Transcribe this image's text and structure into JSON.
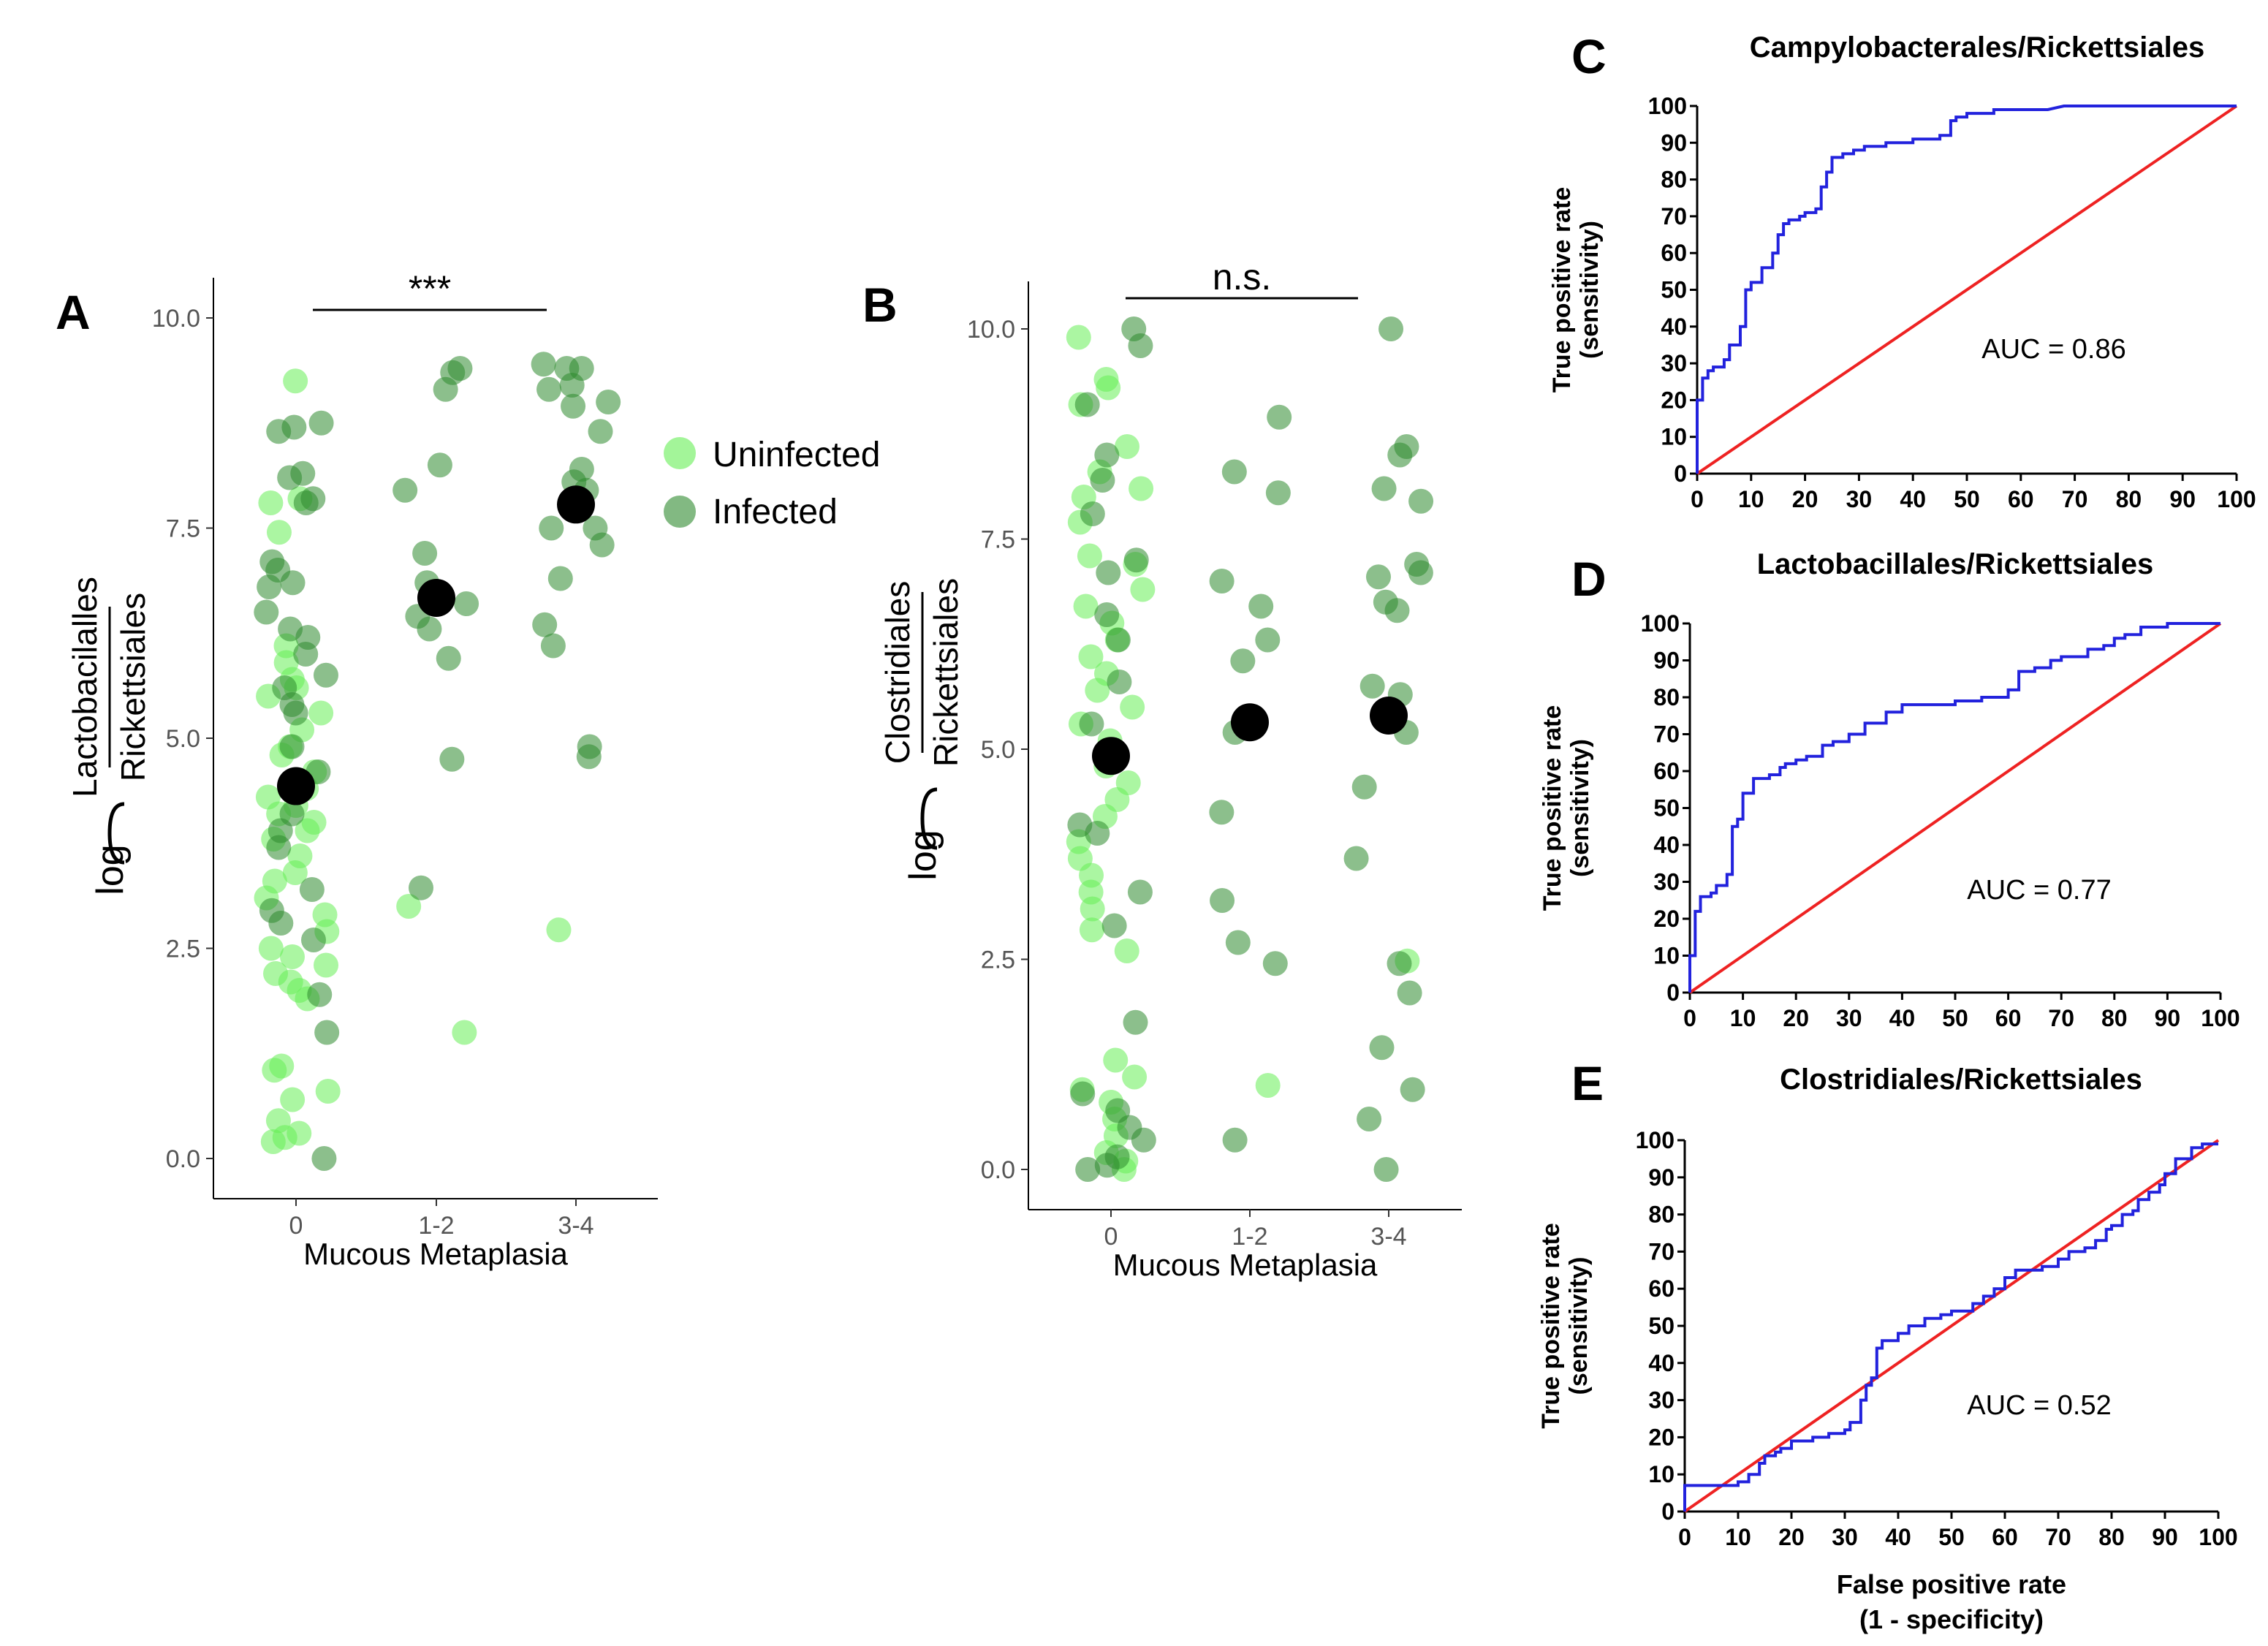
{
  "chart_data": [
    {
      "panel": "A",
      "type": "scatter",
      "xlabel": "Mucous Metaplasia",
      "ylabel_prefix": "log",
      "ylabel_numerator": "Lactobacilalles",
      "ylabel_denominator": "Rickettsiales",
      "categories": [
        "0",
        "1-2",
        "3-4"
      ],
      "yticks": [
        "0.0",
        "2.5",
        "5.0",
        "7.5",
        "10.0"
      ],
      "ylim": [
        0,
        10.0
      ],
      "significance": "***",
      "means": [
        4.43,
        6.67,
        7.78
      ],
      "series": [
        {
          "name": "Uninfected",
          "color": "#66ee55",
          "category_index": [
            0,
            0,
            0,
            0,
            0,
            0,
            0,
            0,
            0,
            0,
            0,
            0,
            0,
            0,
            0,
            0,
            0,
            0,
            0,
            0,
            0,
            0,
            0,
            0,
            0,
            0,
            0,
            0,
            0,
            0,
            0,
            0,
            0,
            0,
            0,
            0,
            0,
            0,
            0,
            0,
            0,
            0,
            1,
            1,
            2
          ],
          "values": [
            9.25,
            7.85,
            7.8,
            7.45,
            5.7,
            5.6,
            5.5,
            5.3,
            5.1,
            4.9,
            4.8,
            4.6,
            4.4,
            4.3,
            4.2,
            4.1,
            3.9,
            3.8,
            3.6,
            3.4,
            3.3,
            3.1,
            2.9,
            2.7,
            2.5,
            2.4,
            2.3,
            2.2,
            2.1,
            2.0,
            1.9,
            1.1,
            1.05,
            0.8,
            0.7,
            0.45,
            0.3,
            0.25,
            0.2,
            4.0,
            5.9,
            6.1,
            3.0,
            1.5,
            2.72
          ]
        },
        {
          "name": "Infected",
          "color": "#2e8b2e",
          "category_index": [
            0,
            0,
            0,
            0,
            0,
            0,
            0,
            0,
            0,
            0,
            0,
            0,
            0,
            0,
            0,
            0,
            0,
            0,
            0,
            0,
            0,
            0,
            0,
            0,
            0,
            0,
            0,
            0,
            0,
            0,
            0,
            0,
            1,
            1,
            1,
            1,
            1,
            1,
            1,
            1,
            1,
            1,
            1,
            1,
            1,
            2,
            2,
            2,
            2,
            2,
            2,
            2,
            2,
            2,
            2,
            2,
            2,
            2,
            2,
            2,
            2,
            2,
            2,
            2
          ],
          "values": [
            8.75,
            8.7,
            8.65,
            8.15,
            8.1,
            7.85,
            7.8,
            7.1,
            7.0,
            6.85,
            6.8,
            6.5,
            6.3,
            6.2,
            6.0,
            5.75,
            5.6,
            5.4,
            5.3,
            4.9,
            4.6,
            4.4,
            4.1,
            3.9,
            3.7,
            3.2,
            2.95,
            2.8,
            2.6,
            1.95,
            1.5,
            0.0,
            9.4,
            9.35,
            9.15,
            8.25,
            7.95,
            7.2,
            6.85,
            6.45,
            6.3,
            5.95,
            4.75,
            3.22,
            6.6,
            9.45,
            9.4,
            9.4,
            9.2,
            9.15,
            9.0,
            8.95,
            8.65,
            8.2,
            8.05,
            7.5,
            7.5,
            7.3,
            6.9,
            6.35,
            6.1,
            4.9,
            4.78,
            7.95
          ]
        }
      ]
    },
    {
      "panel": "B",
      "type": "scatter",
      "xlabel": "Mucous Metaplasia",
      "ylabel_prefix": "log",
      "ylabel_numerator": "Clostridiales",
      "ylabel_denominator": "Rickettsiales",
      "categories": [
        "0",
        "1-2",
        "3-4"
      ],
      "yticks": [
        "0.0",
        "2.5",
        "5.0",
        "7.5",
        "10.0"
      ],
      "ylim": [
        0,
        10.0
      ],
      "significance": "n.s.",
      "means": [
        4.92,
        5.32,
        5.4
      ],
      "series": [
        {
          "name": "Uninfected",
          "color": "#66ee55",
          "category_index": [
            0,
            0,
            0,
            0,
            0,
            0,
            0,
            0,
            0,
            0,
            0,
            0,
            0,
            0,
            0,
            0,
            0,
            0,
            0,
            0,
            0,
            0,
            0,
            0,
            0,
            0,
            0,
            0,
            0,
            0,
            0,
            0,
            0,
            0,
            0,
            0,
            0,
            0,
            0,
            0,
            0,
            1,
            2
          ],
          "values": [
            9.9,
            9.4,
            9.3,
            9.1,
            8.6,
            8.3,
            8.1,
            8.0,
            7.7,
            7.3,
            7.2,
            6.9,
            6.7,
            6.5,
            6.3,
            6.1,
            5.9,
            5.7,
            5.5,
            5.3,
            5.1,
            4.8,
            4.6,
            4.4,
            4.2,
            3.9,
            3.7,
            3.5,
            3.3,
            3.1,
            2.85,
            2.6,
            1.3,
            1.1,
            0.95,
            0.8,
            0.6,
            0.4,
            0.2,
            0.1,
            0.0,
            1.0,
            2.48
          ]
        },
        {
          "name": "Infected",
          "color": "#2e8b2e",
          "category_index": [
            0,
            0,
            0,
            0,
            0,
            0,
            0,
            0,
            0,
            0,
            0,
            0,
            0,
            0,
            0,
            0,
            0,
            0,
            0,
            0,
            0,
            0,
            0,
            0,
            1,
            1,
            1,
            1,
            1,
            1,
            1,
            1,
            1,
            1,
            1,
            1,
            1,
            2,
            2,
            2,
            2,
            2,
            2,
            2,
            2,
            2,
            2,
            2,
            2,
            2,
            2,
            2,
            2,
            2,
            2,
            2,
            2,
            2
          ],
          "values": [
            10.0,
            9.8,
            9.1,
            8.5,
            8.2,
            7.8,
            7.25,
            7.1,
            6.6,
            6.3,
            5.8,
            5.3,
            4.1,
            4.0,
            3.3,
            2.9,
            1.75,
            0.9,
            0.7,
            0.5,
            0.35,
            0.15,
            0.05,
            0.0,
            8.95,
            8.3,
            8.05,
            7.0,
            6.7,
            6.3,
            6.05,
            4.25,
            3.2,
            2.7,
            2.45,
            0.35,
            5.2,
            10.0,
            8.6,
            8.5,
            8.1,
            7.95,
            7.2,
            7.1,
            7.05,
            6.75,
            6.65,
            5.75,
            5.65,
            5.2,
            4.55,
            3.7,
            2.1,
            1.45,
            0.95,
            0.6,
            0.0,
            2.45
          ]
        }
      ]
    },
    {
      "panel": "C",
      "type": "line",
      "title": "Campylobacterales/Rickettsiales",
      "xlabel": "",
      "ylabel_line1": "True positive rate",
      "ylabel_line2": "(sensitivity)",
      "xlim": [
        0,
        100
      ],
      "ylim": [
        0,
        100
      ],
      "xticks": [
        "0",
        "10",
        "20",
        "30",
        "40",
        "50",
        "60",
        "70",
        "80",
        "90",
        "100"
      ],
      "yticks": [
        "0",
        "10",
        "20",
        "30",
        "40",
        "50",
        "60",
        "70",
        "80",
        "90",
        "100"
      ],
      "auc_label": "AUC = 0.86",
      "series": [
        {
          "name": "ROC",
          "color": "#2222dd",
          "x": [
            0,
            0,
            1,
            1,
            2,
            2,
            3,
            3,
            5,
            5,
            6,
            6,
            8,
            8,
            9,
            9,
            10,
            10,
            12,
            12,
            14,
            14,
            15,
            15,
            16,
            16,
            17,
            17,
            19,
            19,
            20,
            20,
            22,
            22,
            23,
            23,
            24,
            24,
            25,
            25,
            27,
            27,
            29,
            29,
            31,
            31,
            35,
            35,
            40,
            40,
            45,
            45,
            47,
            47,
            48,
            48,
            50,
            50,
            55,
            55,
            60,
            60,
            65,
            65,
            68,
            100
          ],
          "y": [
            0,
            20,
            20,
            26,
            26,
            28,
            28,
            29,
            29,
            31,
            31,
            35,
            35,
            40,
            40,
            50,
            50,
            52,
            52,
            56,
            56,
            60,
            60,
            65,
            65,
            68,
            68,
            69,
            69,
            70,
            70,
            71,
            71,
            72,
            72,
            78,
            78,
            82,
            82,
            86,
            86,
            87,
            87,
            88,
            88,
            89,
            89,
            90,
            90,
            91,
            91,
            92,
            92,
            96,
            96,
            97,
            97,
            98,
            98,
            99,
            99,
            99,
            99,
            99,
            100,
            100
          ]
        },
        {
          "name": "Reference",
          "color": "#ee2222",
          "x": [
            0,
            100
          ],
          "y": [
            0,
            100
          ]
        }
      ]
    },
    {
      "panel": "D",
      "type": "line",
      "title": "Lactobacillales/Rickettsiales",
      "xlabel": "",
      "ylabel_line1": "True positive rate",
      "ylabel_line2": "(sensitivity)",
      "xlim": [
        0,
        100
      ],
      "ylim": [
        0,
        100
      ],
      "xticks": [
        "0",
        "10",
        "20",
        "30",
        "40",
        "50",
        "60",
        "70",
        "80",
        "90",
        "100"
      ],
      "yticks": [
        "0",
        "10",
        "20",
        "30",
        "40",
        "50",
        "60",
        "70",
        "80",
        "90",
        "100"
      ],
      "auc_label": "AUC = 0.77",
      "series": [
        {
          "name": "ROC",
          "color": "#2222dd",
          "x": [
            0,
            0,
            1,
            1,
            2,
            2,
            4,
            4,
            5,
            5,
            7,
            7,
            8,
            8,
            9,
            9,
            10,
            10,
            12,
            12,
            15,
            15,
            17,
            17,
            18,
            18,
            20,
            20,
            22,
            22,
            25,
            25,
            27,
            27,
            30,
            30,
            33,
            33,
            37,
            37,
            40,
            40,
            50,
            50,
            55,
            55,
            60,
            60,
            62,
            62,
            65,
            65,
            68,
            68,
            70,
            70,
            75,
            75,
            78,
            78,
            80,
            80,
            82,
            82,
            85,
            85,
            90,
            90,
            100
          ],
          "y": [
            0,
            10,
            10,
            22,
            22,
            26,
            26,
            27,
            27,
            29,
            29,
            32,
            32,
            45,
            45,
            47,
            47,
            54,
            54,
            58,
            58,
            59,
            59,
            61,
            61,
            62,
            62,
            63,
            63,
            64,
            64,
            67,
            67,
            68,
            68,
            70,
            70,
            73,
            73,
            76,
            76,
            78,
            78,
            79,
            79,
            80,
            80,
            82,
            82,
            87,
            87,
            88,
            88,
            90,
            90,
            91,
            91,
            93,
            93,
            94,
            94,
            96,
            96,
            97,
            97,
            99,
            99,
            100,
            100
          ]
        },
        {
          "name": "Reference",
          "color": "#ee2222",
          "x": [
            0,
            100
          ],
          "y": [
            0,
            100
          ]
        }
      ]
    },
    {
      "panel": "E",
      "type": "line",
      "title": "Clostridiales/Rickettsiales",
      "xlabel_line1": "False positive rate",
      "xlabel_line2": "(1 - specificity)",
      "ylabel_line1": "True positive rate",
      "ylabel_line2": "(sensitivity)",
      "xlim": [
        0,
        100
      ],
      "ylim": [
        0,
        100
      ],
      "xticks": [
        "0",
        "10",
        "20",
        "30",
        "40",
        "50",
        "60",
        "70",
        "80",
        "90",
        "100"
      ],
      "yticks": [
        "0",
        "10",
        "20",
        "30",
        "40",
        "50",
        "60",
        "70",
        "80",
        "90",
        "100"
      ],
      "auc_label": "AUC = 0.52",
      "series": [
        {
          "name": "ROC",
          "color": "#2222dd",
          "x": [
            0,
            0,
            10,
            10,
            12,
            12,
            14,
            14,
            15,
            15,
            17,
            17,
            18,
            18,
            20,
            20,
            24,
            24,
            27,
            27,
            30,
            30,
            31,
            31,
            33,
            33,
            34,
            34,
            35,
            35,
            36,
            36,
            37,
            37,
            40,
            40,
            42,
            42,
            45,
            45,
            48,
            48,
            50,
            50,
            54,
            54,
            56,
            56,
            58,
            58,
            60,
            60,
            62,
            62,
            67,
            67,
            70,
            70,
            72,
            72,
            75,
            75,
            77,
            77,
            79,
            79,
            80,
            80,
            82,
            82,
            84,
            84,
            85,
            85,
            87,
            87,
            89,
            89,
            90,
            90,
            92,
            92,
            95,
            95,
            97,
            97,
            100
          ],
          "y": [
            0,
            7,
            7,
            8,
            8,
            10,
            10,
            13,
            13,
            15,
            15,
            16,
            16,
            17,
            17,
            19,
            19,
            20,
            20,
            21,
            21,
            22,
            22,
            24,
            24,
            30,
            30,
            34,
            34,
            36,
            36,
            44,
            44,
            46,
            46,
            48,
            48,
            50,
            50,
            52,
            52,
            53,
            53,
            54,
            54,
            56,
            56,
            58,
            58,
            60,
            60,
            63,
            63,
            65,
            65,
            66,
            66,
            68,
            68,
            70,
            70,
            71,
            71,
            73,
            73,
            76,
            76,
            77,
            77,
            80,
            80,
            81,
            81,
            84,
            84,
            86,
            86,
            88,
            88,
            91,
            91,
            95,
            95,
            98,
            98,
            99,
            99
          ]
        },
        {
          "name": "Reference",
          "color": "#ee2222",
          "x": [
            0,
            100
          ],
          "y": [
            0,
            100
          ]
        }
      ]
    }
  ],
  "legend": {
    "uninfected": "Uninfected",
    "infected": "Infected",
    "uninfected_color": "#66ee55",
    "infected_color": "#2e8b2e"
  },
  "panel_letters": {
    "a": "A",
    "b": "B",
    "c": "C",
    "d": "D",
    "e": "E"
  }
}
